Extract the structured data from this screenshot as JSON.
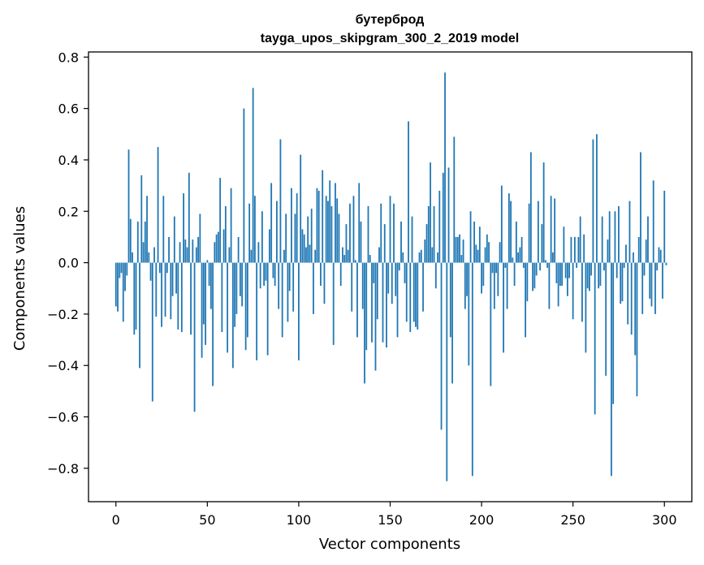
{
  "chart_data": {
    "type": "bar",
    "title": "бутерброд",
    "subtitle": "tayga_upos_skipgram_300_2_2019 model",
    "xlabel": "Vector components",
    "ylabel": "Components values",
    "xlim": [
      -15,
      315
    ],
    "ylim": [
      -0.93,
      0.82
    ],
    "x_ticks": [
      0,
      50,
      100,
      150,
      200,
      250,
      300
    ],
    "x_tick_labels": [
      "0",
      "50",
      "100",
      "150",
      "200",
      "250",
      "300"
    ],
    "y_ticks": [
      -0.8,
      -0.6,
      -0.4,
      -0.2,
      0.0,
      0.2,
      0.4,
      0.6,
      0.8
    ],
    "y_tick_labels": [
      "−0.8",
      "−0.6",
      "−0.4",
      "−0.2",
      "0.0",
      "0.2",
      "0.4",
      "0.6",
      "0.8"
    ],
    "grid": false,
    "bar_color": "#1f77b4",
    "values": [
      -0.17,
      -0.19,
      -0.06,
      -0.04,
      -0.23,
      -0.11,
      -0.05,
      0.44,
      0.17,
      0.04,
      -0.28,
      -0.26,
      0.16,
      -0.41,
      0.34,
      0.08,
      0.16,
      0.26,
      0.04,
      -0.07,
      -0.54,
      0.06,
      -0.21,
      0.45,
      -0.04,
      -0.25,
      0.26,
      -0.21,
      -0.04,
      0.1,
      -0.22,
      -0.13,
      0.18,
      -0.12,
      -0.26,
      0.08,
      -0.27,
      0.27,
      0.09,
      0.06,
      0.35,
      -0.28,
      0.09,
      -0.58,
      0.06,
      0.1,
      0.19,
      -0.37,
      -0.24,
      -0.32,
      0.01,
      -0.09,
      -0.18,
      -0.48,
      0.08,
      0.11,
      0.12,
      0.33,
      -0.27,
      0.13,
      0.22,
      -0.35,
      0.06,
      0.29,
      -0.41,
      -0.25,
      -0.2,
      0.1,
      -0.13,
      -0.17,
      0.6,
      -0.34,
      -0.29,
      0.23,
      0.05,
      0.68,
      0.26,
      -0.38,
      0.08,
      -0.1,
      0.2,
      -0.09,
      -0.07,
      -0.36,
      0.13,
      0.31,
      -0.06,
      -0.09,
      0.24,
      -0.18,
      0.48,
      -0.29,
      0.05,
      0.19,
      -0.23,
      -0.11,
      0.29,
      -0.19,
      0.19,
      0.27,
      -0.38,
      0.42,
      0.13,
      0.11,
      0.06,
      0.18,
      0.07,
      0.21,
      -0.2,
      0.05,
      0.29,
      0.28,
      -0.09,
      0.36,
      -0.16,
      0.26,
      0.24,
      0.32,
      0.22,
      -0.32,
      0.31,
      0.25,
      0.19,
      -0.09,
      0.06,
      0.03,
      0.15,
      0.05,
      0.23,
      -0.19,
      0.26,
      0.01,
      -0.29,
      0.31,
      0.16,
      -0.18,
      -0.47,
      -0.34,
      0.22,
      0.03,
      -0.31,
      -0.08,
      -0.42,
      -0.22,
      0.06,
      0.23,
      -0.31,
      0.15,
      -0.33,
      -0.12,
      0.26,
      -0.16,
      0.23,
      -0.13,
      -0.29,
      -0.03,
      0.16,
      0.04,
      -0.08,
      -0.23,
      0.55,
      -0.27,
      0.18,
      -0.23,
      -0.25,
      -0.26,
      0.04,
      0.05,
      -0.19,
      0.09,
      0.15,
      0.22,
      0.39,
      0.06,
      0.22,
      -0.1,
      0.04,
      0.28,
      -0.65,
      0.35,
      0.74,
      -0.85,
      0.37,
      -0.29,
      -0.47,
      0.49,
      0.1,
      0.1,
      0.11,
      0.03,
      0.09,
      -0.18,
      -0.13,
      -0.4,
      0.2,
      -0.83,
      0.16,
      0.07,
      0.05,
      0.14,
      -0.12,
      -0.09,
      0.06,
      0.11,
      0.08,
      -0.48,
      -0.04,
      -0.18,
      -0.04,
      -0.13,
      0.08,
      0.3,
      -0.35,
      -0.02,
      -0.18,
      0.27,
      0.24,
      0.02,
      -0.09,
      0.16,
      0.04,
      0.06,
      0.1,
      -0.02,
      -0.29,
      -0.15,
      0.23,
      0.43,
      -0.11,
      -0.1,
      -0.05,
      0.24,
      -0.03,
      0.15,
      0.39,
      0.01,
      -0.02,
      -0.18,
      0.26,
      0.04,
      0.25,
      -0.08,
      -0.17,
      -0.09,
      -0.09,
      0.14,
      -0.06,
      -0.13,
      -0.06,
      0.1,
      -0.22,
      0.1,
      -0.02,
      0.1,
      0.18,
      -0.23,
      0.11,
      -0.35,
      -0.1,
      -0.11,
      -0.05,
      0.48,
      -0.59,
      0.5,
      -0.1,
      -0.09,
      0.18,
      -0.03,
      -0.44,
      0.09,
      0.2,
      -0.83,
      -0.55,
      0.2,
      -0.06,
      0.22,
      -0.16,
      -0.15,
      -0.02,
      0.07,
      -0.24,
      0.24,
      -0.28,
      0.04,
      -0.36,
      -0.52,
      0.1,
      0.43,
      -0.2,
      -0.05,
      0.09,
      0.18,
      -0.14,
      -0.17,
      0.32,
      -0.2,
      -0.03,
      0.06,
      0.05,
      -0.14
    ],
    "tail_values": [
      0.28,
      -0.01
    ]
  }
}
